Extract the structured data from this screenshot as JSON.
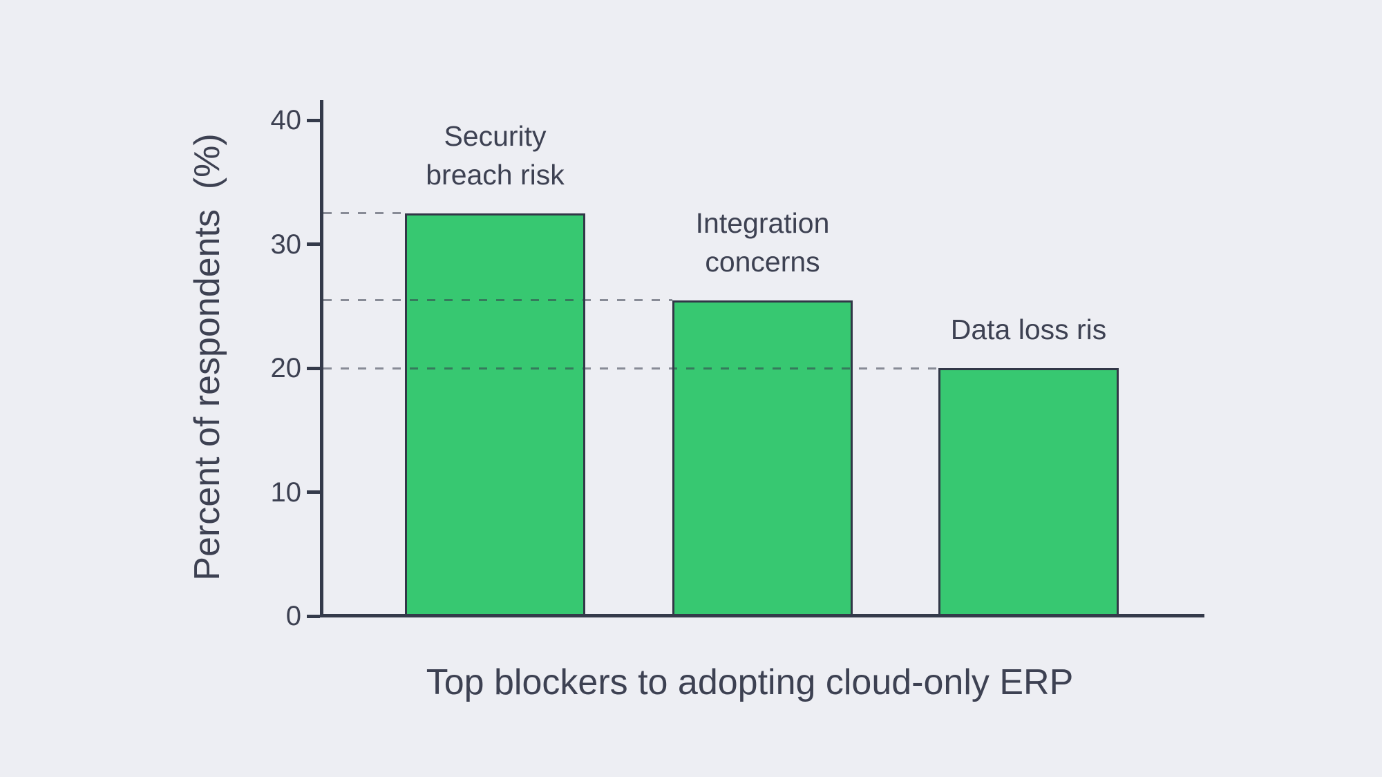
{
  "chart_data": {
    "type": "bar",
    "title": "",
    "xlabel": "Top blockers to adopting cloud-only ERP",
    "ylabel": "Percent of respondents  (%)",
    "categories": [
      "Security breach risk",
      "Integration concerns",
      "Data loss ris"
    ],
    "category_lines": [
      [
        "Security",
        "breach risk"
      ],
      [
        "Integration",
        "concerns"
      ],
      [
        "Data loss ris"
      ]
    ],
    "values": [
      32.5,
      25.5,
      20
    ],
    "yticks": [
      0,
      10,
      20,
      30,
      40
    ],
    "ylim": [
      0,
      40
    ],
    "legend": "none",
    "grid": "dashed leader lines from y-axis to each bar top",
    "colors": {
      "background": "#edeef3",
      "bar_fill": "#37c871",
      "bar_border": "#323747",
      "axis": "#343a4a",
      "text": "#3d4152",
      "dash": "rgba(52,58,74,0.55)"
    }
  }
}
